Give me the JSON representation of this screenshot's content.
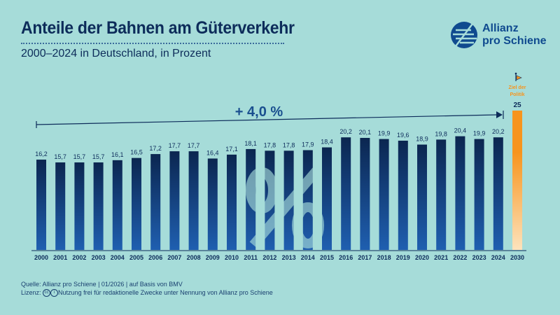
{
  "header": {
    "title": "Anteile der Bahnen am Güterverkehr",
    "subtitle": "2000–2024 in Deutschland, in Prozent"
  },
  "logo": {
    "line1": "Allianz",
    "line2": "pro Schiene"
  },
  "chart_data": {
    "type": "bar",
    "title": "Anteile der Bahnen am Güterverkehr",
    "subtitle": "2000–2024 in Deutschland, in Prozent",
    "categories": [
      "2000",
      "2001",
      "2002",
      "2003",
      "2004",
      "2005",
      "2006",
      "2007",
      "2008",
      "2009",
      "2010",
      "2011",
      "2012",
      "2013",
      "2014",
      "2015",
      "2016",
      "2017",
      "2018",
      "2019",
      "2020",
      "2021",
      "2022",
      "2023",
      "2024"
    ],
    "values": [
      16.2,
      15.7,
      15.7,
      15.7,
      16.1,
      16.5,
      17.2,
      17.7,
      17.7,
      16.4,
      17.1,
      18.1,
      17.8,
      17.8,
      17.9,
      18.4,
      20.2,
      20.1,
      19.9,
      19.6,
      18.9,
      19.8,
      20.4,
      19.9,
      20.2
    ],
    "labels": [
      "16,2",
      "15,7",
      "15,7",
      "15,7",
      "16,1",
      "16,5",
      "17,2",
      "17,7",
      "17,7",
      "16,4",
      "17,1",
      "18,1",
      "17,8",
      "17,8",
      "17,9",
      "18,4",
      "20,2",
      "20,1",
      "19,9",
      "19,6",
      "18,9",
      "19,8",
      "20,4",
      "19,9",
      "20,2"
    ],
    "target": {
      "category": "2030",
      "value": 25,
      "label": "25",
      "note_line1": "Ziel der",
      "note_line2": "Politik"
    },
    "trend_annotation": "+ 4,0 %",
    "watermark": "%",
    "ylim": [
      0,
      25
    ],
    "grid": false,
    "colors": {
      "bar_top": "#0b2650",
      "bar_bottom": "#1f5fb0",
      "target_top": "#f7941d",
      "target_bottom": "#fde3bd",
      "accent": "#1a4f8f"
    }
  },
  "footer": {
    "source": "Quelle: Allianz pro Schiene | 01/2026 | auf Basis von BMV",
    "license_label": "Lizenz:",
    "license_text": "Nutzung frei für redaktionelle Zwecke unter Nennung von Allianz pro Schiene"
  }
}
